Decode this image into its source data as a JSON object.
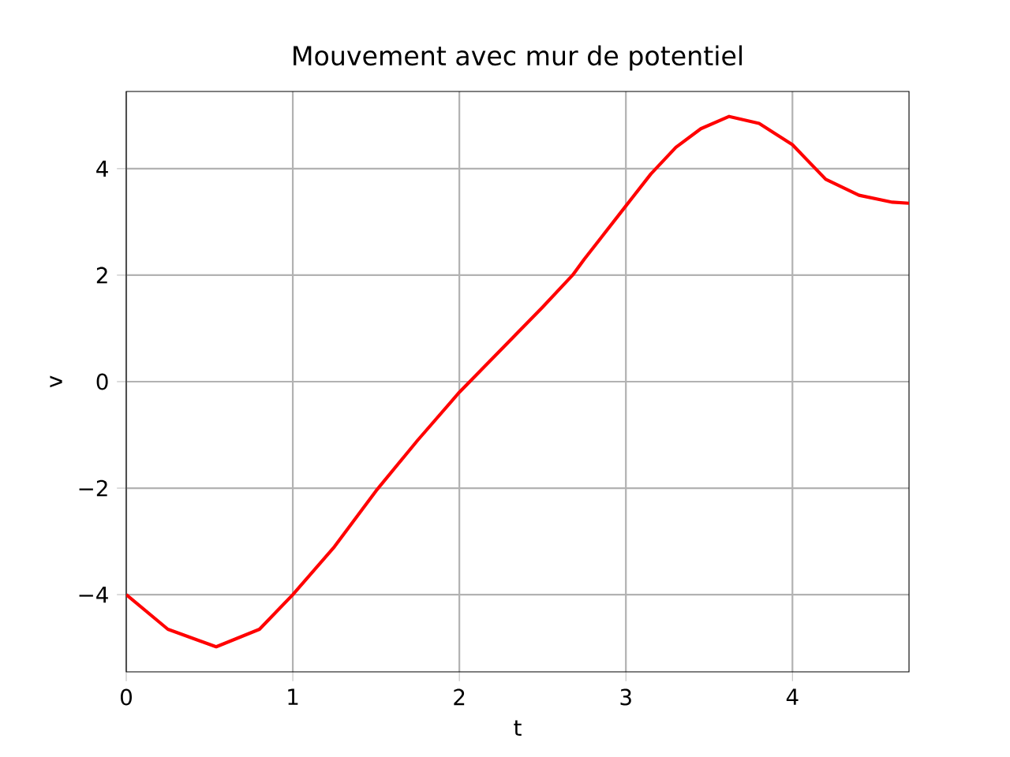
{
  "chart_data": {
    "type": "line",
    "title": "Mouvement avec mur de potentiel",
    "xlabel": "t",
    "ylabel": "v",
    "xlim": [
      0,
      4.7
    ],
    "ylim": [
      -5.45,
      5.45
    ],
    "xticks": [
      0,
      1,
      2,
      3,
      4
    ],
    "yticks": [
      {
        "value": -4,
        "label": "−4"
      },
      {
        "value": -2,
        "label": "−2"
      },
      0,
      2,
      4
    ],
    "grid": true,
    "marker": "none",
    "line_style": "solid",
    "series": [
      {
        "color": "#ff0000",
        "x": [
          0,
          0.25,
          0.54,
          0.8,
          1,
          1.25,
          1.5,
          1.75,
          2,
          2.25,
          2.5,
          2.68,
          2.75,
          3,
          3.15,
          3.3,
          3.45,
          3.62,
          3.8,
          4,
          4.2,
          4.4,
          4.6,
          4.7
        ],
        "values": [
          -4,
          -4.65,
          -4.98,
          -4.65,
          -4.0,
          -3.1,
          -2.05,
          -1.1,
          -0.2,
          0.6,
          1.4,
          2.0,
          2.3,
          3.3,
          3.9,
          4.4,
          4.75,
          4.98,
          4.85,
          4.45,
          3.8,
          3.5,
          3.37,
          3.35
        ]
      }
    ]
  }
}
